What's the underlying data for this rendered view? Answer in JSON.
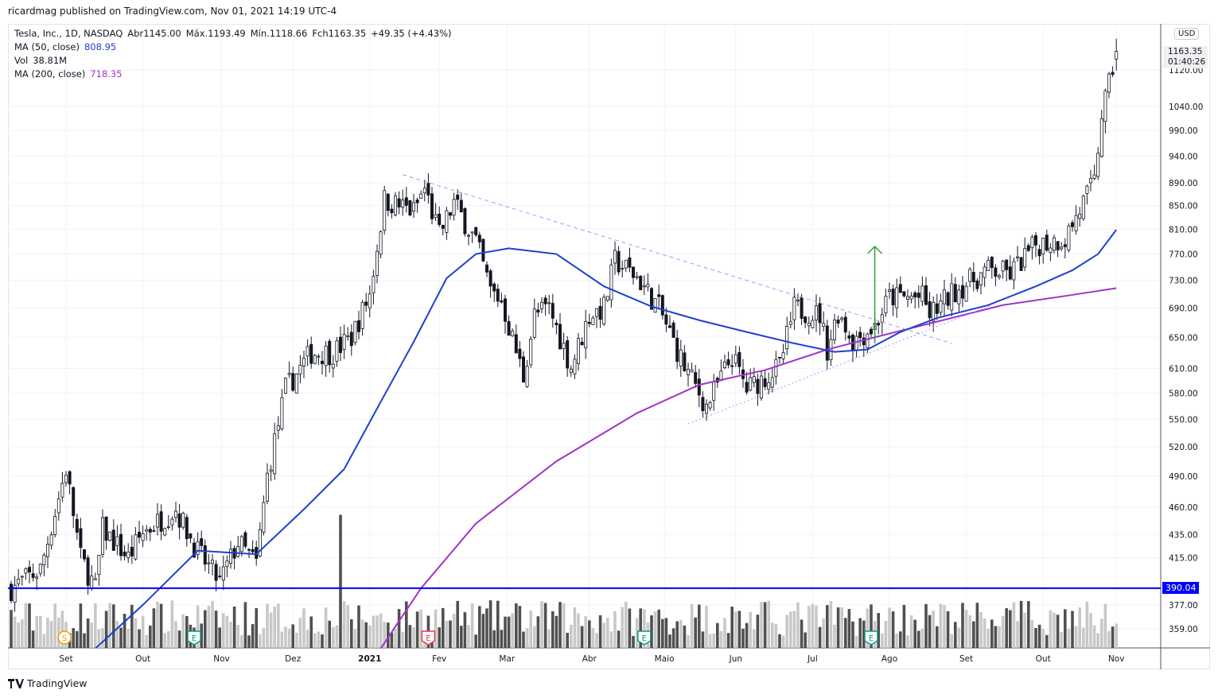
{
  "published": "ricardmag published on TradingView.com, Nov 01, 2021 14:19 UTC-4",
  "legend": {
    "symbol": "Tesla, Inc., 1D, NASDAQ",
    "open": "Abr1145.00",
    "high": "Máx.1193.49",
    "low": "Mín.1118.66",
    "close": "Fch1163.35",
    "change": "+49.35 (+4.43%)",
    "ma50_label": "MA (50, close)",
    "ma50_value": "808.95",
    "vol_label": "Vol",
    "vol_value": "38.81M",
    "ma200_label": "MA (200, close)",
    "ma200_value": "718.35"
  },
  "axis": {
    "currency": "USD",
    "last_price": "1163.35",
    "countdown": "01:40:26",
    "hline_label": "390.04"
  },
  "logo": "TradingView",
  "colors": {
    "ma50": "#1e3fd0",
    "ma200": "#a232c8",
    "hline": "#0000ff",
    "arrow": "#2e9e3a",
    "trend": "#9c9cf0"
  },
  "chart_data": {
    "type": "candlestick",
    "title": "Tesla, Inc., 1D, NASDAQ",
    "y_scale": "log",
    "y_ticks": [
      1120,
      1040,
      990,
      940,
      890,
      850,
      810,
      770,
      730,
      690,
      650,
      610,
      580,
      550,
      520,
      490,
      460,
      435,
      415,
      377,
      359
    ],
    "x_ticks": [
      {
        "label": "Set",
        "day": 15
      },
      {
        "label": "Out",
        "day": 36
      },
      {
        "label": "Nov",
        "day": 57.5
      },
      {
        "label": "Dez",
        "day": 77
      },
      {
        "label": "2021",
        "day": 98
      },
      {
        "label": "Fev",
        "day": 117
      },
      {
        "label": "Mar",
        "day": 135.5
      },
      {
        "label": "Abr",
        "day": 158
      },
      {
        "label": "Maio",
        "day": 178.5
      },
      {
        "label": "Jun",
        "day": 198
      },
      {
        "label": "Jul",
        "day": 219
      },
      {
        "label": "Ago",
        "day": 240
      },
      {
        "label": "Set",
        "day": 261
      },
      {
        "label": "Out",
        "day": 282
      },
      {
        "label": "Nov",
        "day": 302
      }
    ],
    "close_path": [
      [
        0,
        390
      ],
      [
        8,
        405
      ],
      [
        15,
        497
      ],
      [
        19,
        415
      ],
      [
        23,
        390
      ],
      [
        25,
        440
      ],
      [
        32,
        415
      ],
      [
        36,
        437
      ],
      [
        45,
        458
      ],
      [
        51,
        420
      ],
      [
        57,
        395
      ],
      [
        62,
        428
      ],
      [
        67,
        410
      ],
      [
        70,
        490
      ],
      [
        75,
        585
      ],
      [
        82,
        630
      ],
      [
        88,
        630
      ],
      [
        93,
        650
      ],
      [
        98,
        710
      ],
      [
        102,
        860
      ],
      [
        110,
        840
      ],
      [
        113,
        880
      ],
      [
        117,
        800
      ],
      [
        121,
        855
      ],
      [
        127,
        790
      ],
      [
        131,
        715
      ],
      [
        134,
        700
      ],
      [
        140,
        600
      ],
      [
        143,
        680
      ],
      [
        147,
        690
      ],
      [
        153,
        612
      ],
      [
        158,
        680
      ],
      [
        162,
        690
      ],
      [
        165,
        760
      ],
      [
        171,
        735
      ],
      [
        177,
        690
      ],
      [
        184,
        612
      ],
      [
        190,
        565
      ],
      [
        197,
        625
      ],
      [
        201,
        585
      ],
      [
        210,
        612
      ],
      [
        214,
        690
      ],
      [
        221,
        680
      ],
      [
        223,
        635
      ],
      [
        226,
        685
      ],
      [
        230,
        645
      ],
      [
        236,
        665
      ],
      [
        240,
        705
      ],
      [
        249,
        705
      ],
      [
        251,
        680
      ],
      [
        258,
        715
      ],
      [
        267,
        745
      ],
      [
        273,
        740
      ],
      [
        280,
        785
      ],
      [
        288,
        795
      ],
      [
        293,
        855
      ],
      [
        296,
        890
      ],
      [
        298,
        1025
      ],
      [
        300,
        1085
      ],
      [
        302,
        1163.35
      ]
    ],
    "ma50": [
      [
        23,
        345
      ],
      [
        36,
        377
      ],
      [
        51,
        421
      ],
      [
        67,
        418
      ],
      [
        80,
        458
      ],
      [
        91,
        497
      ],
      [
        101,
        570
      ],
      [
        110,
        644
      ],
      [
        119,
        733
      ],
      [
        127,
        770
      ],
      [
        136,
        779
      ],
      [
        149,
        770
      ],
      [
        162,
        721
      ],
      [
        175,
        692
      ],
      [
        188,
        673
      ],
      [
        201,
        657
      ],
      [
        214,
        642
      ],
      [
        225,
        631
      ],
      [
        234,
        634
      ],
      [
        243,
        657
      ],
      [
        253,
        676
      ],
      [
        267,
        694
      ],
      [
        280,
        721
      ],
      [
        290,
        745
      ],
      [
        297,
        770
      ],
      [
        302,
        808.95
      ]
    ],
    "ma200": [
      [
        101,
        345
      ],
      [
        112,
        390
      ],
      [
        127,
        445
      ],
      [
        149,
        505
      ],
      [
        171,
        557
      ],
      [
        188,
        590
      ],
      [
        206,
        608
      ],
      [
        223,
        634
      ],
      [
        236,
        650
      ],
      [
        253,
        671
      ],
      [
        271,
        694
      ],
      [
        288,
        707
      ],
      [
        302,
        718.35
      ]
    ],
    "hline": 390.04,
    "trendline_down": [
      [
        107,
        905
      ],
      [
        257,
        642
      ]
    ],
    "trendline_up": [
      [
        185,
        545
      ],
      [
        268,
        694
      ]
    ],
    "arrow": {
      "day": 236,
      "from": 642,
      "to": 782
    },
    "events": [
      {
        "label": "S",
        "day": 14.6,
        "color": "#ff9800"
      },
      {
        "label": "E",
        "day": 50,
        "color": "#089981"
      },
      {
        "label": "E",
        "day": 114,
        "color": "#f23645"
      },
      {
        "label": "E",
        "day": 173,
        "color": "#089981"
      },
      {
        "label": "E",
        "day": 235,
        "color": "#089981"
      }
    ],
    "volume_last": "38.81M"
  }
}
